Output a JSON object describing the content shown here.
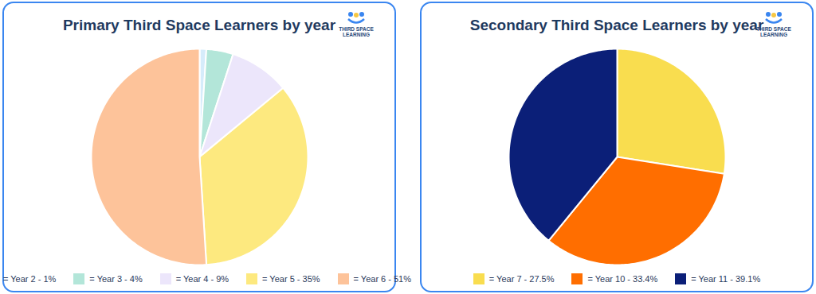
{
  "chart_data": [
    {
      "type": "pie",
      "title": "Primary Third Space Learners by year",
      "categories": [
        "= Year 2 - 1%",
        "= Year 3 - 4%",
        "= Year 4 - 9%",
        "= Year 5 - 35%",
        "= Year 6 - 51%"
      ],
      "values": [
        1,
        4,
        9,
        35,
        51
      ],
      "colors": [
        "#d6ecfb",
        "#b3e6d9",
        "#ece6fb",
        "#fde97f",
        "#fdc39a"
      ],
      "legend": "bottom",
      "annotations": [
        "THIRD SPACE",
        "LEARNING"
      ]
    },
    {
      "type": "pie",
      "title": "Secondary Third Space Learners by year",
      "categories": [
        "= Year 7 - 27.5%",
        "= Year 10 - 33.4%",
        "= Year 11 - 39.1%"
      ],
      "values": [
        27.5,
        33.4,
        39.1
      ],
      "colors": [
        "#f9dd4f",
        "#ff6e00",
        "#0b1f78"
      ],
      "legend": "bottom",
      "annotations": [
        "THIRD SPACE",
        "LEARNING"
      ]
    }
  ]
}
